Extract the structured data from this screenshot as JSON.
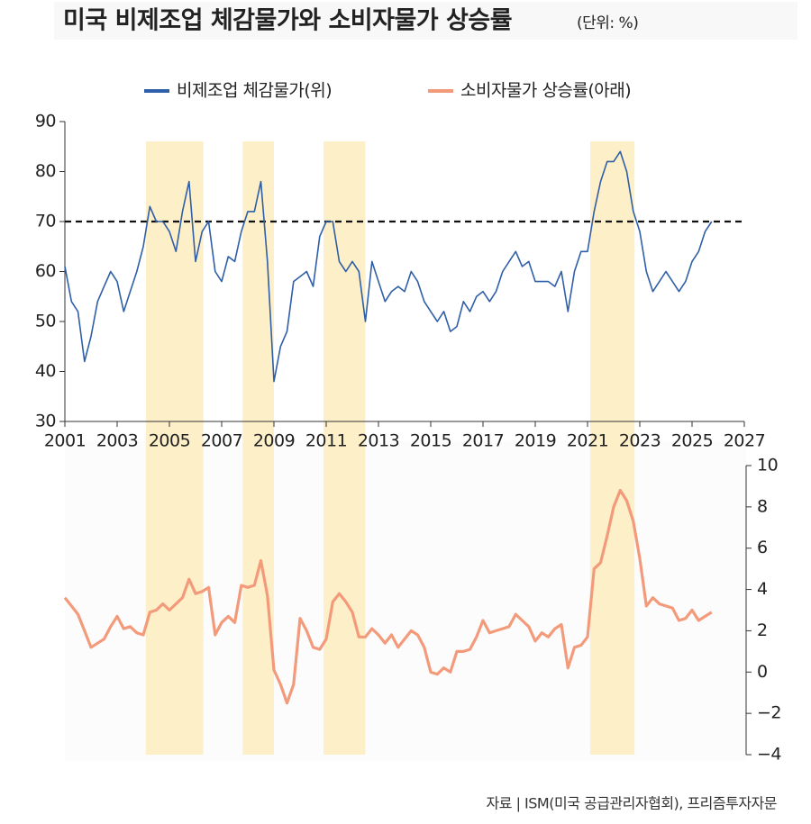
{
  "chart_data": [
    {
      "type": "line",
      "title": "미국 비제조업 체감물가와 소비자물가 상승률",
      "subtitle": "(단위: %)",
      "x": [
        2001,
        2001.25,
        2001.5,
        2001.75,
        2002,
        2002.25,
        2002.5,
        2002.75,
        2003,
        2003.25,
        2003.5,
        2003.75,
        2004,
        2004.25,
        2004.5,
        2004.75,
        2005,
        2005.25,
        2005.5,
        2005.75,
        2006,
        2006.25,
        2006.5,
        2006.75,
        2007,
        2007.25,
        2007.5,
        2007.75,
        2008,
        2008.25,
        2008.5,
        2008.75,
        2009,
        2009.25,
        2009.5,
        2009.75,
        2010,
        2010.25,
        2010.5,
        2010.75,
        2011,
        2011.25,
        2011.5,
        2011.75,
        2012,
        2012.25,
        2012.5,
        2012.75,
        2013,
        2013.25,
        2013.5,
        2013.75,
        2014,
        2014.25,
        2014.5,
        2014.75,
        2015,
        2015.25,
        2015.5,
        2015.75,
        2016,
        2016.25,
        2016.5,
        2016.75,
        2017,
        2017.25,
        2017.5,
        2017.75,
        2018,
        2018.25,
        2018.5,
        2018.75,
        2019,
        2019.25,
        2019.5,
        2019.75,
        2020,
        2020.25,
        2020.5,
        2020.75,
        2021,
        2021.25,
        2021.5,
        2021.75,
        2022,
        2022.25,
        2022.5,
        2022.75,
        2023,
        2023.25,
        2023.5,
        2023.75,
        2024,
        2024.25,
        2024.5,
        2024.75,
        2025,
        2025.25,
        2025.5,
        2025.75
      ],
      "series": [
        {
          "name": "비제조업 체감물가(위)",
          "color": "#2f5fa8",
          "values": [
            61,
            54,
            52,
            42,
            47,
            54,
            57,
            60,
            58,
            52,
            56,
            60,
            65,
            73,
            70,
            70,
            68,
            64,
            72,
            78,
            62,
            68,
            70,
            60,
            58,
            63,
            62,
            68,
            72,
            72,
            78,
            62,
            38,
            45,
            48,
            58,
            59,
            60,
            57,
            67,
            70,
            70,
            62,
            60,
            62,
            60,
            50,
            62,
            58,
            54,
            56,
            57,
            56,
            60,
            58,
            54,
            52,
            50,
            52,
            48,
            49,
            54,
            52,
            55,
            56,
            54,
            56,
            60,
            62,
            64,
            61,
            62,
            58,
            58,
            58,
            57,
            60,
            52,
            60,
            64,
            64,
            72,
            78,
            82,
            82,
            84,
            80,
            72,
            68,
            60,
            56,
            58,
            60,
            58,
            56,
            58,
            62,
            64,
            68,
            70
          ]
        }
      ],
      "xlim": [
        2001,
        2027
      ],
      "xticks": [
        2001,
        2003,
        2005,
        2007,
        2009,
        2011,
        2013,
        2015,
        2017,
        2019,
        2021,
        2023,
        2025,
        2027
      ],
      "ylim": [
        30,
        90
      ],
      "yticks": [
        30,
        40,
        50,
        60,
        70,
        80,
        90
      ],
      "hline": 70,
      "shaded_periods": [
        [
          2004.1,
          2006.3
        ],
        [
          2007.8,
          2009.0
        ],
        [
          2010.9,
          2012.5
        ],
        [
          2021.1,
          2022.8
        ]
      ],
      "shade_color": "#fdefc8"
    },
    {
      "type": "line",
      "x": [
        2001,
        2001.25,
        2001.5,
        2001.75,
        2002,
        2002.25,
        2002.5,
        2002.75,
        2003,
        2003.25,
        2003.5,
        2003.75,
        2004,
        2004.25,
        2004.5,
        2004.75,
        2005,
        2005.25,
        2005.5,
        2005.75,
        2006,
        2006.25,
        2006.5,
        2006.75,
        2007,
        2007.25,
        2007.5,
        2007.75,
        2008,
        2008.25,
        2008.5,
        2008.75,
        2009,
        2009.25,
        2009.5,
        2009.75,
        2010,
        2010.25,
        2010.5,
        2010.75,
        2011,
        2011.25,
        2011.5,
        2011.75,
        2012,
        2012.25,
        2012.5,
        2012.75,
        2013,
        2013.25,
        2013.5,
        2013.75,
        2014,
        2014.25,
        2014.5,
        2014.75,
        2015,
        2015.25,
        2015.5,
        2015.75,
        2016,
        2016.25,
        2016.5,
        2016.75,
        2017,
        2017.25,
        2017.5,
        2017.75,
        2018,
        2018.25,
        2018.5,
        2018.75,
        2019,
        2019.25,
        2019.5,
        2019.75,
        2020,
        2020.25,
        2020.5,
        2020.75,
        2021,
        2021.25,
        2021.5,
        2021.75,
        2022,
        2022.25,
        2022.5,
        2022.75,
        2023,
        2023.25,
        2023.5,
        2023.75,
        2024,
        2024.25,
        2024.5,
        2024.75,
        2025,
        2025.25,
        2025.5,
        2025.75
      ],
      "series": [
        {
          "name": "소비자물가 상승률(아래)",
          "color": "#f39a7b",
          "values": [
            3.6,
            3.2,
            2.8,
            2.0,
            1.2,
            1.4,
            1.6,
            2.2,
            2.7,
            2.1,
            2.2,
            1.9,
            1.8,
            2.9,
            3.0,
            3.3,
            3.0,
            3.3,
            3.6,
            4.5,
            3.8,
            3.9,
            4.1,
            1.8,
            2.4,
            2.7,
            2.4,
            4.2,
            4.1,
            4.2,
            5.4,
            3.7,
            0.1,
            -0.6,
            -1.5,
            -0.6,
            2.6,
            2.0,
            1.2,
            1.1,
            1.6,
            3.4,
            3.8,
            3.4,
            2.9,
            1.7,
            1.7,
            2.1,
            1.8,
            1.4,
            1.8,
            1.2,
            1.6,
            2.0,
            1.8,
            1.2,
            0.0,
            -0.1,
            0.2,
            0.0,
            1.0,
            1.0,
            1.1,
            1.7,
            2.5,
            1.9,
            2.0,
            2.1,
            2.2,
            2.8,
            2.5,
            2.2,
            1.5,
            1.9,
            1.7,
            2.1,
            2.3,
            0.2,
            1.2,
            1.3,
            1.7,
            5.0,
            5.3,
            6.6,
            8.0,
            8.8,
            8.3,
            7.3,
            5.5,
            3.2,
            3.6,
            3.3,
            3.2,
            3.1,
            2.5,
            2.6,
            3.0,
            2.5,
            2.7,
            2.9
          ]
        }
      ],
      "xlim": [
        2001,
        2027
      ],
      "ylim": [
        -4,
        10
      ],
      "yticks": [
        {
          "value": -4,
          "label": "−4"
        },
        {
          "value": -2,
          "label": "−2"
        },
        0,
        2,
        4,
        6,
        8,
        10
      ],
      "y_axis_side": "right"
    }
  ],
  "source": "자료 | ISM(미국 공급관리자협회), 프리즘투자자문"
}
